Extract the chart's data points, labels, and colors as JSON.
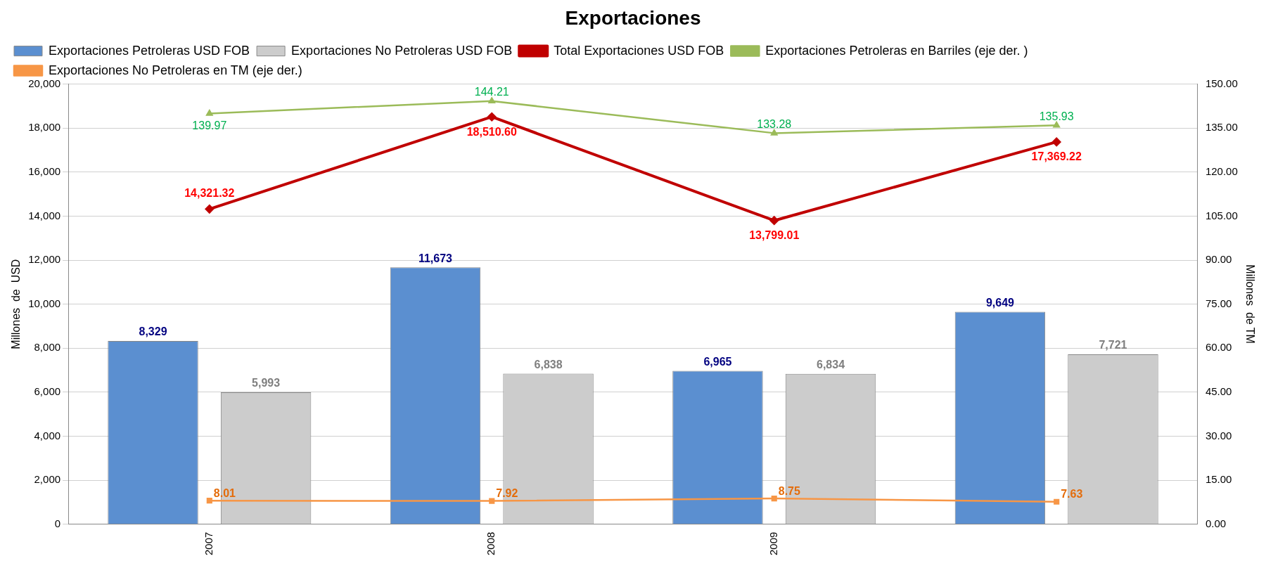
{
  "chart_data": {
    "type": "bar",
    "title": "Exportaciones",
    "ylabel": "Millones  de  USD",
    "y2label": "Millones  de TM",
    "categories": [
      "2007",
      "2008",
      "2009",
      null
    ],
    "series": [
      {
        "name": "Exportaciones Petroleras USD FOB",
        "color": "#5b8fd0",
        "values": [
          8329,
          11673,
          6965,
          9649
        ],
        "value_labels": [
          "8,329",
          "11,673",
          "6,965",
          "9,649"
        ]
      },
      {
        "name": "Exportaciones No Petroleras USD FOB",
        "color": "#cccccc",
        "values": [
          5993,
          6838,
          6834,
          7721
        ],
        "value_labels": [
          "5,993",
          "6,838",
          "6,834",
          "7,721"
        ]
      },
      {
        "name": "Total Exportaciones USD FOB",
        "type": "line",
        "color": "#c00000",
        "marker": "diamond",
        "values": [
          14321.32,
          18510.6,
          13799.01,
          17369.22
        ],
        "value_labels": [
          "14,321.32",
          "18,510.60",
          "13,799.01",
          "17,369.22"
        ]
      },
      {
        "name": "Exportaciones Petroleras en Barriles (eje der. )",
        "type": "line",
        "axis": "y2",
        "color": "#9bbb59",
        "marker": "triangle",
        "values": [
          139.97,
          144.21,
          133.28,
          135.93
        ],
        "value_labels": [
          "139.97",
          "144.21",
          "133.28",
          "135.93"
        ]
      },
      {
        "name": "Exportaciones No Petroleras en TM (eje der.)",
        "type": "line",
        "axis": "y2",
        "color": "#f79646",
        "marker": "square",
        "values": [
          8.01,
          7.92,
          8.75,
          7.63
        ],
        "value_labels": [
          "8.01",
          "7.92",
          "8.75",
          "7.63"
        ]
      }
    ],
    "ylim": [
      0,
      20000
    ],
    "yticks": [
      0,
      {
        "value": 2000,
        "label": "2,000"
      },
      {
        "value": 4000,
        "label": "4,000"
      },
      {
        "value": 6000,
        "label": "6,000"
      },
      {
        "value": 8000,
        "label": "8,000"
      },
      {
        "value": 10000,
        "label": "10,000"
      },
      {
        "value": 12000,
        "label": "12,000"
      },
      {
        "value": 14000,
        "label": "14,000"
      },
      {
        "value": 16000,
        "label": "16,000"
      },
      {
        "value": 18000,
        "label": "18,000"
      },
      {
        "value": 20000,
        "label": "20,000"
      }
    ],
    "y2lim": [
      0,
      150
    ],
    "y2ticks": [
      {
        "value": 0,
        "label": "0.00"
      },
      {
        "value": 15,
        "label": "15.00"
      },
      {
        "value": 30,
        "label": "30.00"
      },
      {
        "value": 45,
        "label": "45.00"
      },
      {
        "value": 60,
        "label": "60.00"
      },
      {
        "value": 75,
        "label": "75.00"
      },
      {
        "value": 90,
        "label": "90.00"
      },
      {
        "value": 105,
        "label": "105.00"
      },
      {
        "value": 120,
        "label": "120.00"
      },
      {
        "value": 135,
        "label": "135.00"
      },
      {
        "value": 150,
        "label": "150.00"
      }
    ],
    "grid": "y",
    "legend": "top"
  }
}
